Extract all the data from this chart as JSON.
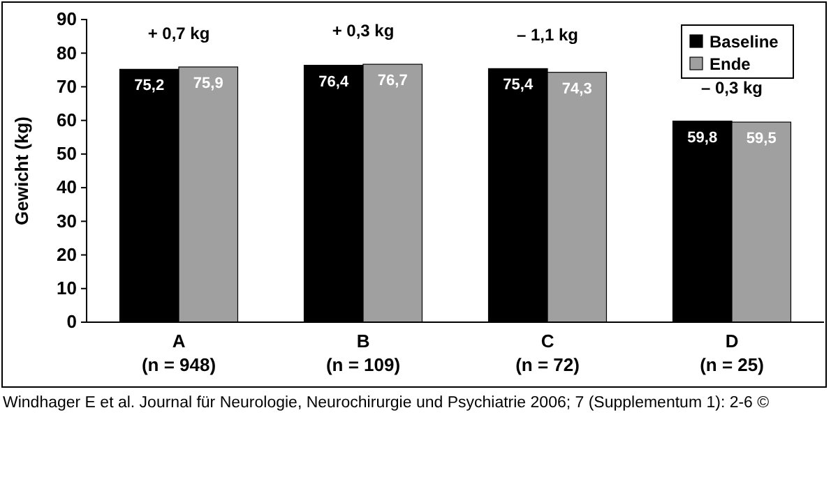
{
  "chart_data": {
    "type": "bar",
    "ylabel": "Gewicht (kg)",
    "categories": [
      "A\n(n = 948)",
      "B\n(n = 109)",
      "C\n(n = 72)",
      "D\n(n = 25)"
    ],
    "series": [
      {
        "name": "Baseline",
        "color": "#000000",
        "values": [
          75.2,
          76.4,
          75.4,
          59.8
        ],
        "value_labels": [
          "75,2",
          "76,4",
          "75,4",
          "59,8"
        ]
      },
      {
        "name": "Ende",
        "color": "#a0a0a0",
        "values": [
          75.9,
          76.7,
          74.3,
          59.5
        ],
        "value_labels": [
          "75,9",
          "76,7",
          "74,3",
          "59,5"
        ]
      }
    ],
    "ylim": [
      0,
      90
    ],
    "yticks": [
      0,
      10,
      20,
      30,
      40,
      50,
      60,
      70,
      80,
      90
    ],
    "grid": false,
    "legend": "top right",
    "annotations": [
      "+ 0,7 kg",
      "+ 0,3 kg",
      "– 1,1 kg",
      "– 0,3 kg",
      "Windhager E et al. Journal für Neurologie, Neurochirurgie und Psychiatrie 2006; 7 (Supplementum 1): 2-6 ©"
    ]
  }
}
